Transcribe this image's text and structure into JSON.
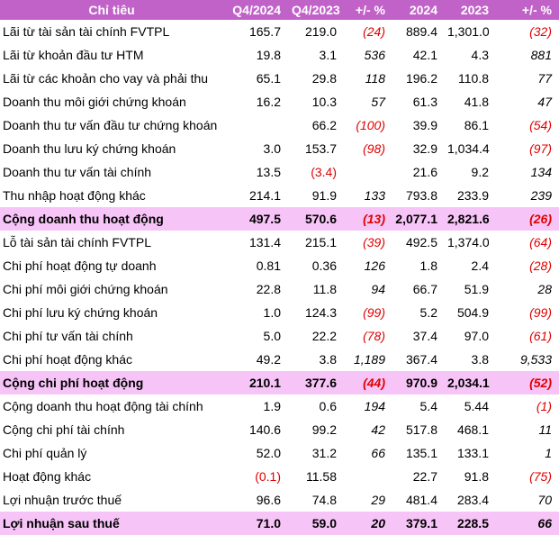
{
  "table": {
    "header": [
      "Chỉ tiêu",
      "Q4/2024",
      "Q4/2023",
      "+/- %",
      "2024",
      "2023",
      "+/- %"
    ],
    "rows": [
      {
        "cells": [
          "Lãi từ tài sản tài chính FVTPL",
          "165.7",
          "219.0",
          "(24)",
          "889.4",
          "1,301.0",
          "(32)"
        ]
      },
      {
        "cells": [
          "Lãi từ khoản đầu tư HTM",
          "19.8",
          "3.1",
          "536",
          "42.1",
          "4.3",
          "881"
        ]
      },
      {
        "cells": [
          "Lãi từ các khoản cho vay và phải thu",
          "65.1",
          "29.8",
          "118",
          "196.2",
          "110.8",
          "77"
        ]
      },
      {
        "cells": [
          "Doanh thu môi giới chứng khoán",
          "16.2",
          "10.3",
          "57",
          "61.3",
          "41.8",
          "47"
        ]
      },
      {
        "cells": [
          "Doanh thu tư vấn đầu tư chứng khoán",
          null,
          "66.2",
          "(100)",
          "39.9",
          "86.1",
          "(54)"
        ]
      },
      {
        "cells": [
          "Doanh thu lưu ký chứng khoán",
          "3.0",
          "153.7",
          "(98)",
          "32.9",
          "1,034.4",
          "(97)"
        ]
      },
      {
        "cells": [
          "Doanh thu tư vấn tài chính",
          "13.5",
          "(3.4)",
          null,
          "21.6",
          "9.2",
          "134"
        ]
      },
      {
        "cells": [
          "Thu nhập hoạt động khác",
          "214.1",
          "91.9",
          "133",
          "793.8",
          "233.9",
          "239"
        ]
      },
      {
        "cells": [
          "Cộng doanh thu hoạt động",
          "497.5",
          "570.6",
          "(13)",
          "2,077.1",
          "2,821.6",
          "(26)"
        ],
        "total": true
      },
      {
        "cells": [
          "Lỗ tài sản tài chính FVTPL",
          "131.4",
          "215.1",
          "(39)",
          "492.5",
          "1,374.0",
          "(64)"
        ]
      },
      {
        "cells": [
          "Chi phí hoạt động tự doanh",
          "0.81",
          "0.36",
          "126",
          "1.8",
          "2.4",
          "(28)"
        ]
      },
      {
        "cells": [
          "Chi phí môi giới chứng khoán",
          "22.8",
          "11.8",
          "94",
          "66.7",
          "51.9",
          "28"
        ]
      },
      {
        "cells": [
          "Chi phí lưu ký chứng khoán",
          "1.0",
          "124.3",
          "(99)",
          "5.2",
          "504.9",
          "(99)"
        ]
      },
      {
        "cells": [
          "Chi phí tư vấn tài chính",
          "5.0",
          "22.2",
          "(78)",
          "37.4",
          "97.0",
          "(61)"
        ]
      },
      {
        "cells": [
          "Chi phí hoạt động khác",
          "49.2",
          "3.8",
          "1,189",
          "367.4",
          "3.8",
          "9,533"
        ]
      },
      {
        "cells": [
          "Cộng chi phí hoạt động",
          "210.1",
          "377.6",
          "(44)",
          "970.9",
          "2,034.1",
          "(52)"
        ],
        "total": true
      },
      {
        "cells": [
          "Cộng doanh thu hoạt động tài chính",
          "1.9",
          "0.6",
          "194",
          "5.4",
          "5.44",
          "(1)"
        ]
      },
      {
        "cells": [
          "Cộng chi phí tài chính",
          "140.6",
          "99.2",
          "42",
          "517.8",
          "468.1",
          "11"
        ]
      },
      {
        "cells": [
          "Chi phí quản lý",
          "52.0",
          "31.2",
          "66",
          "135.1",
          "133.1",
          "1"
        ]
      },
      {
        "cells": [
          "Hoạt động khác",
          "(0.1)",
          "11.58",
          null,
          "22.7",
          "91.8",
          "(75)"
        ]
      },
      {
        "cells": [
          "Lợi nhuận trước thuế",
          "96.6",
          "74.8",
          "29",
          "481.4",
          "283.4",
          "70"
        ]
      },
      {
        "cells": [
          "Lợi nhuận sau thuế",
          "71.0",
          "59.0",
          "20",
          "379.1",
          "228.5",
          "66"
        ],
        "total": true
      }
    ]
  }
}
